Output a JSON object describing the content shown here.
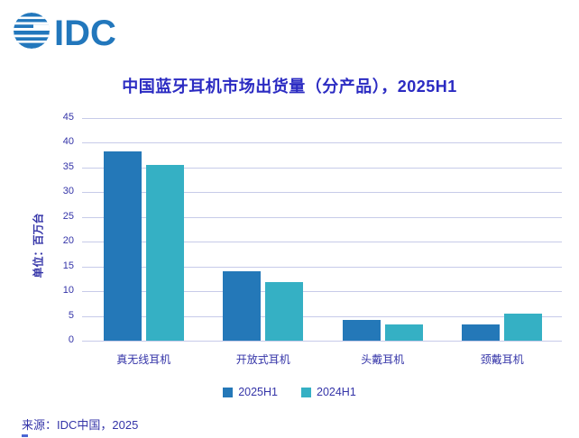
{
  "brand": {
    "logo_text": "IDC",
    "logo_color": "#2277BC"
  },
  "source": "来源：IDC中国，2025",
  "colors": {
    "series_2025H1": "#2478B8",
    "series_2024H1": "#35B0C4",
    "title_text": "#2B2BC2",
    "axis_text": "#3434A8",
    "gridline": "#C7CBE9"
  },
  "chart_data": {
    "type": "bar",
    "title": "中国蓝牙耳机市场出货量（分产品），2025H1",
    "ylabel": "单位：百万台",
    "xlabel": "",
    "categories": [
      "真无线耳机",
      "开放式耳机",
      "头戴耳机",
      "颈戴耳机"
    ],
    "series": [
      {
        "name": "2025H1",
        "color": "#2478B8",
        "values": [
          38.2,
          14.0,
          4.2,
          3.3
        ]
      },
      {
        "name": "2024H1",
        "color": "#35B0C4",
        "values": [
          35.6,
          11.8,
          3.2,
          5.5
        ]
      }
    ],
    "ylim": [
      0,
      45
    ],
    "yticks": [
      0,
      5,
      10,
      15,
      20,
      25,
      30,
      35,
      40,
      45
    ],
    "grid": true,
    "legend_position": "bottom"
  }
}
